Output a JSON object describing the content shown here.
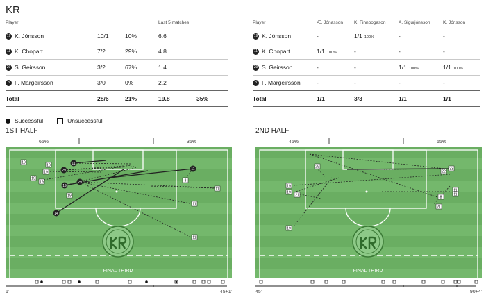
{
  "team": "KR",
  "table1": {
    "headers": [
      "Player",
      "",
      "",
      "Last 5 matches",
      ""
    ],
    "rows": [
      {
        "num": "19",
        "name": "K. Jónsson",
        "a": "10/1",
        "b": "10%",
        "c": "6.6",
        "d": ""
      },
      {
        "num": "11",
        "name": "K. Chopart",
        "a": "7/2",
        "b": "29%",
        "c": "4.8",
        "d": ""
      },
      {
        "num": "29",
        "name": "S. Geirsson",
        "a": "3/2",
        "b": "67%",
        "c": "1.4",
        "d": ""
      },
      {
        "num": "8",
        "name": "F. Margeirsson",
        "a": "3/0",
        "b": "0%",
        "c": "2.2",
        "d": ""
      }
    ],
    "total": {
      "label": "Total",
      "a": "28/6",
      "b": "21%",
      "c": "19.8",
      "d": "35%"
    }
  },
  "table2": {
    "headers": [
      "Player",
      "Æ. Jónasson",
      "K. Finnbogason",
      "A. Sigurjónsson",
      "K. Jónsson"
    ],
    "rows": [
      {
        "num": "19",
        "name": "K. Jónsson",
        "c1": "-",
        "c2": "1/1",
        "c2p": "100%",
        "c3": "-",
        "c3p": "",
        "c4": "-",
        "c4p": ""
      },
      {
        "num": "11",
        "name": "K. Chopart",
        "c1": "1/1",
        "c1p": "100%",
        "c2": "-",
        "c2p": "",
        "c3": "-",
        "c3p": "",
        "c4": "-",
        "c4p": ""
      },
      {
        "num": "29",
        "name": "S. Geirsson",
        "c1": "-",
        "c1p": "",
        "c2": "-",
        "c2p": "",
        "c3": "1/1",
        "c3p": "100%",
        "c4": "1/1",
        "c4p": "100%"
      },
      {
        "num": "8",
        "name": "F. Margeirsson",
        "c1": "-",
        "c1p": "",
        "c2": "-",
        "c2p": "",
        "c3": "-",
        "c3p": "",
        "c4": "-",
        "c4p": ""
      }
    ],
    "total": {
      "label": "Total",
      "c1": "1/1",
      "c2": "3/3",
      "c3": "1/1",
      "c4": "1/1"
    }
  },
  "legend": {
    "successful": "Successful",
    "unsuccessful": "Unsuccessful"
  },
  "first_half": {
    "title": "1ST HALF",
    "left_pct": "65%",
    "right_pct": "35%",
    "final_third": "FINAL THIRD",
    "start": "1'",
    "end": "45+1'"
  },
  "second_half": {
    "title": "2ND HALF",
    "left_pct": "45%",
    "right_pct": "55%",
    "final_third": "FINAL THIRD",
    "start": "45'",
    "end": "90+4'"
  },
  "colors": {
    "pitch_light": "#74b86c",
    "pitch_dark": "#69ad61",
    "line": "#ffffff",
    "dark": "#111111"
  }
}
